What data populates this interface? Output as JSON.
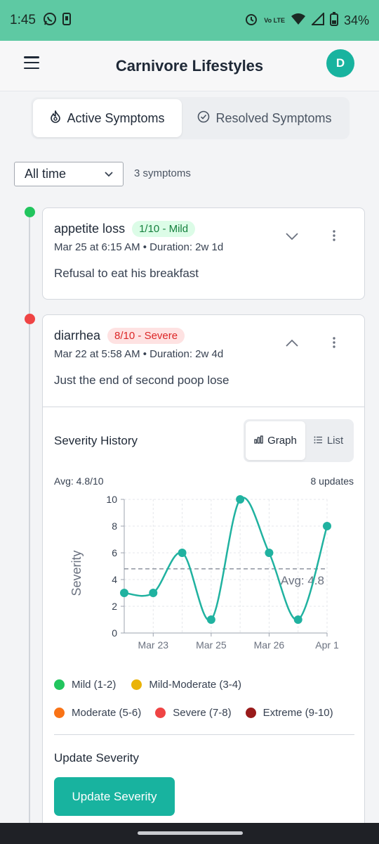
{
  "status_bar": {
    "time": "1:45",
    "lte": "Vo LTE",
    "battery": "34%"
  },
  "header": {
    "title": "Carnivore Lifestyles",
    "avatar_initial": "D"
  },
  "tabs": [
    {
      "label": "Active Symptoms",
      "active": true
    },
    {
      "label": "Resolved Symptoms",
      "active": false
    }
  ],
  "filter": {
    "selected": "All time",
    "count_label": "3 symptoms"
  },
  "symptoms": [
    {
      "name": "appetite loss",
      "severity_badge": "1/10 - Mild",
      "meta": "Mar 25 at 6:15 AM • Duration: 2w 1d",
      "note": "Refusal to eat his breakfast",
      "expanded": false
    },
    {
      "name": "diarrhea",
      "severity_badge": "8/10 - Severe",
      "meta": "Mar 22 at 5:58 AM • Duration: 2w 4d",
      "note": "Just the end of second poop lose",
      "expanded": true
    }
  ],
  "severity_history": {
    "title": "Severity History",
    "view_toggle": [
      {
        "label": "Graph",
        "active": true
      },
      {
        "label": "List",
        "active": false
      }
    ],
    "avg_label": "Avg: 4.8/10",
    "updates_label": "8 updates"
  },
  "chart_data": {
    "type": "line",
    "ylabel": "Severity",
    "xlabel": "",
    "ylim": [
      0,
      10
    ],
    "yticks": [
      0,
      2,
      4,
      6,
      8,
      10
    ],
    "x_tick_labels": [
      "Mar 23",
      "Mar 25",
      "Mar 26",
      "Apr 1"
    ],
    "x_tick_positions": [
      1,
      3,
      5,
      7
    ],
    "x": [
      0,
      1,
      2,
      3,
      4,
      5,
      6,
      7
    ],
    "values": [
      3,
      3,
      6,
      1,
      10,
      6,
      1,
      8
    ],
    "average": 4.8,
    "average_label": "Avg: 4.8",
    "grid": true,
    "line_color": "#20b2a0"
  },
  "legend": [
    {
      "label": "Mild (1-2)",
      "color": "#22c55e"
    },
    {
      "label": "Mild-Moderate (3-4)",
      "color": "#eab308"
    },
    {
      "label": "Moderate (5-6)",
      "color": "#f97316"
    },
    {
      "label": "Severe (7-8)",
      "color": "#ef4444"
    },
    {
      "label": "Extreme (9-10)",
      "color": "#991b1b"
    }
  ],
  "update_severity": {
    "title": "Update Severity",
    "button_label": "Update Severity"
  },
  "colors": {
    "accent": "#18b39f",
    "status_bar": "#5ec9a3"
  }
}
